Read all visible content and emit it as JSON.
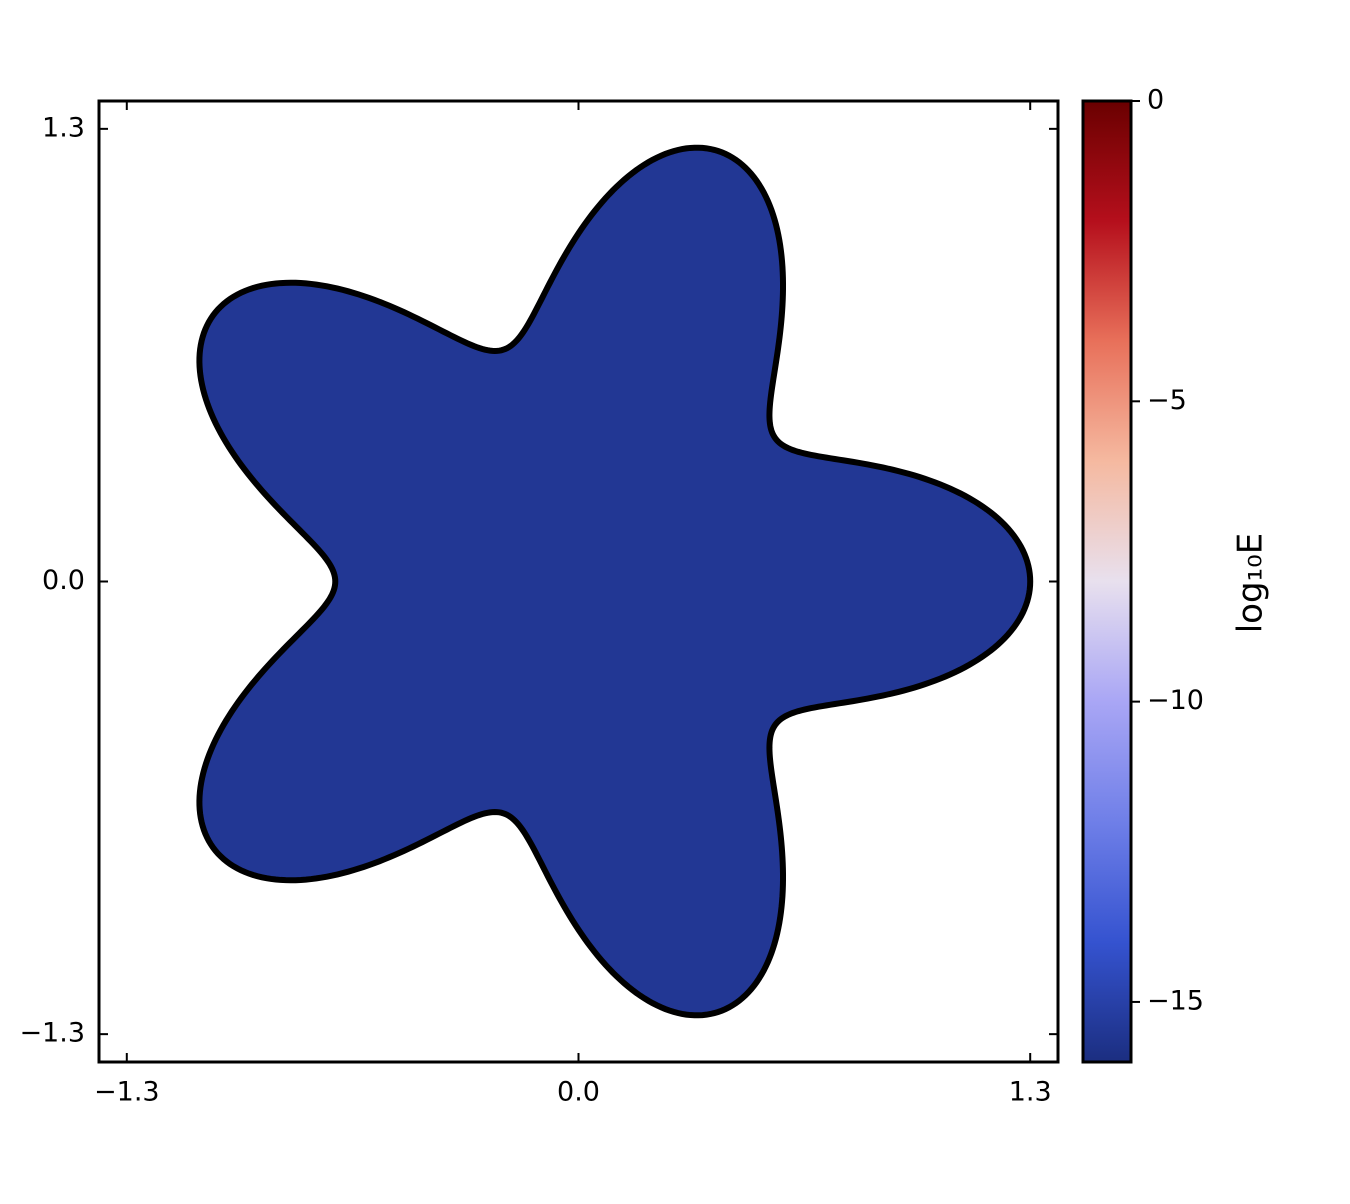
{
  "chart_data": {
    "type": "heatmap",
    "value": -15.5,
    "xlim": [
      -1.38,
      1.38
    ],
    "ylim": [
      -1.38,
      1.38
    ],
    "xticks": [
      {
        "value": -1.3,
        "label": "−1.3"
      },
      {
        "value": 0,
        "label": "0.0"
      },
      1.3
    ],
    "yticks": [
      {
        "value": -1.3,
        "label": "−1.3"
      },
      {
        "value": 0,
        "label": "0.0"
      },
      1.3
    ],
    "clim": [
      -16,
      0
    ],
    "cticks": [
      0,
      {
        "value": -5,
        "label": "−5"
      },
      {
        "value": -10,
        "label": "−10"
      },
      {
        "value": -15,
        "label": "−15"
      }
    ],
    "colorbar_label": "log₁₀E",
    "colormap": [
      "#1b2e80",
      "#3553d0",
      "#6f7fe8",
      "#a9a6f5",
      "#e8e0ee",
      "#f5b9a0",
      "#e8705a",
      "#b50f1c",
      "#6a0000"
    ],
    "boundary_color": "#000000"
  }
}
